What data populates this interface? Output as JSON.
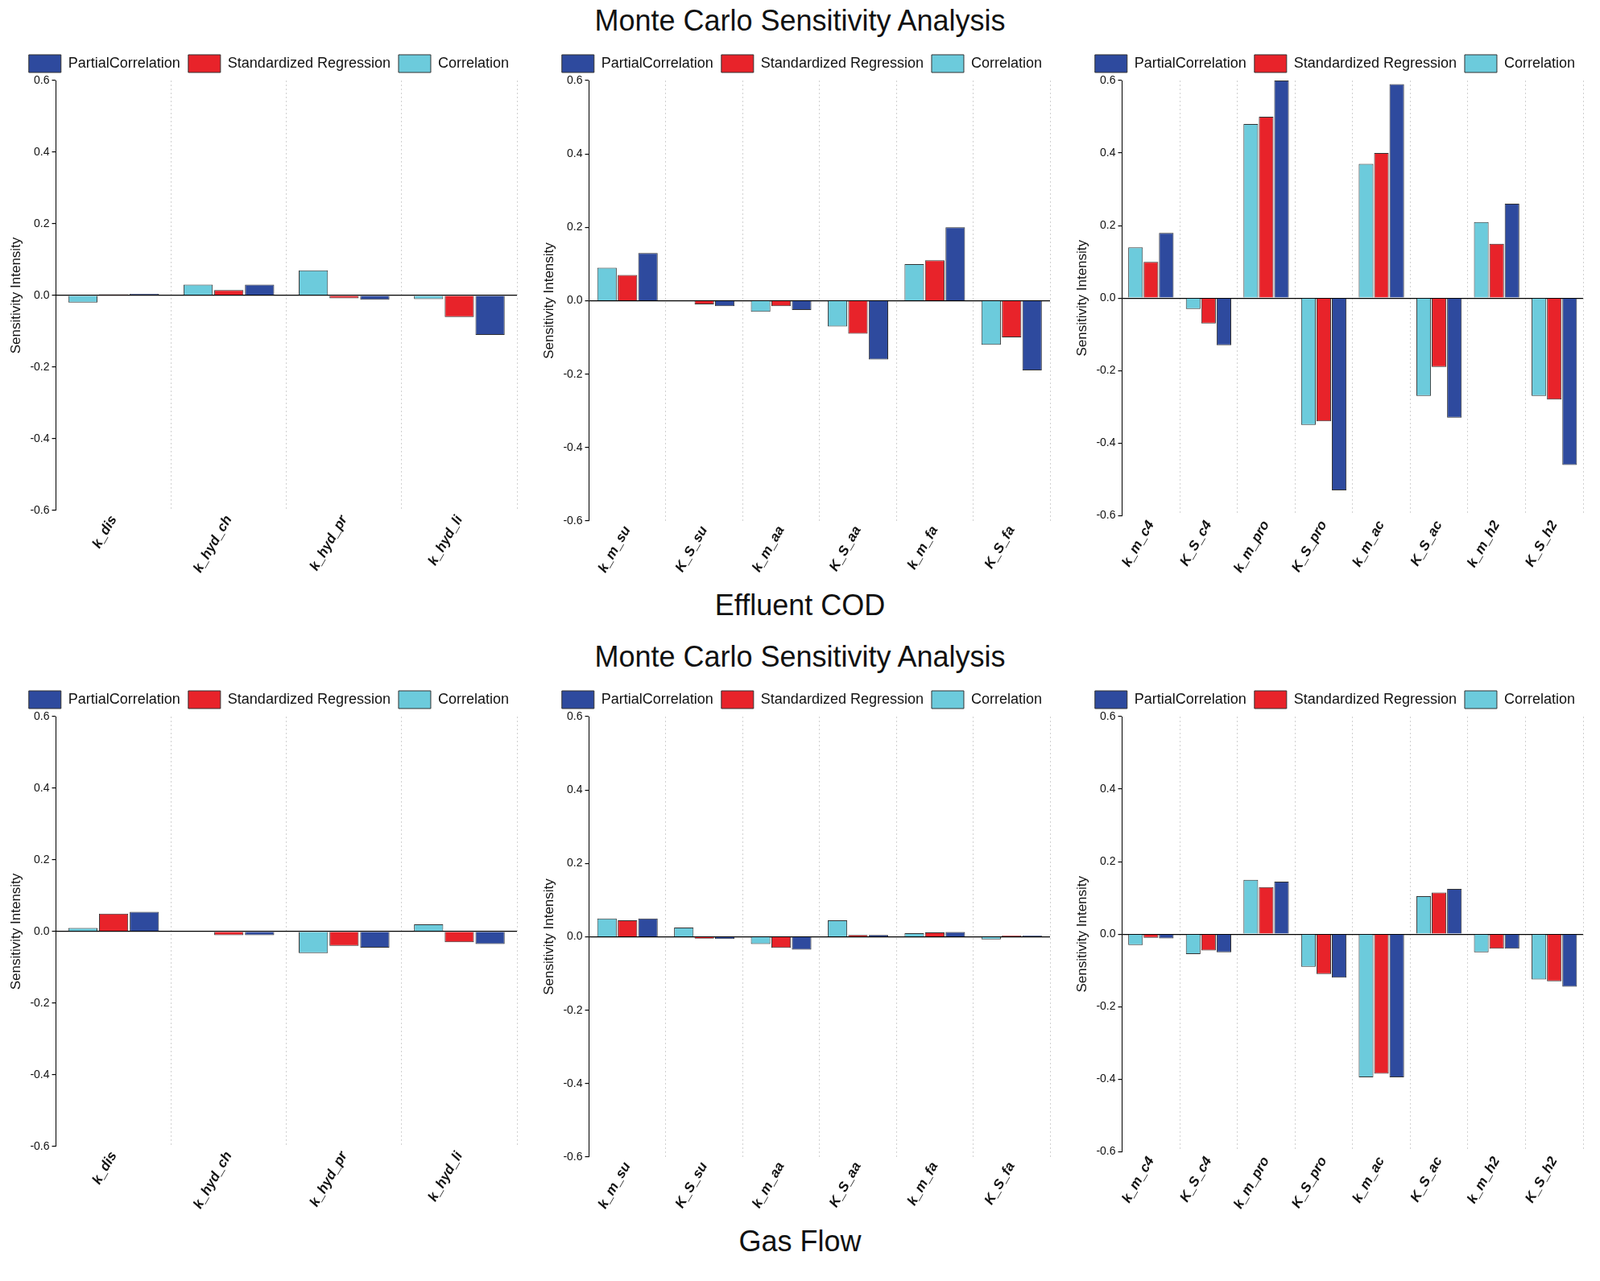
{
  "sections": [
    {
      "title": "Monte Carlo  Sensitivity Analysis",
      "caption": "Effluent COD"
    },
    {
      "title": "Monte Carlo  Sensitivity Analysis",
      "caption": "Gas Flow"
    }
  ],
  "chart_data": [
    {
      "type": "bar",
      "ylabel": "Sensitivity Intensity",
      "legend": "upper right",
      "grid": true,
      "categories": [
        "k_dis",
        "k_hyd_ch",
        "k_hyd_pr",
        "k_hyd_li"
      ],
      "series": [
        {
          "name": "Correlation",
          "color": "#6ccbdc",
          "values": [
            -0.02,
            0.03,
            0.07,
            -0.01
          ]
        },
        {
          "name": "Standardized Regression",
          "color": "#e8232a",
          "values": [
            0.003,
            0.015,
            -0.008,
            -0.06
          ]
        },
        {
          "name": "PartialCorrelation",
          "color": "#2e4a9e",
          "values": [
            0.005,
            0.03,
            -0.012,
            -0.11
          ]
        }
      ],
      "ylim": [
        -0.6,
        0.6
      ],
      "yticks": [
        -0.6,
        -0.4,
        -0.2,
        {
          "value": 0,
          "label": "0.0"
        },
        0.2,
        0.4,
        0.6
      ]
    },
    {
      "type": "bar",
      "ylabel": "Sensitivity Intensity",
      "legend": "upper right",
      "grid": true,
      "categories": [
        "k_m_su",
        "K_S_su",
        "k_m_aa",
        "K_S_aa",
        "k_m_fa",
        "K_S_fa"
      ],
      "series": [
        {
          "name": "Correlation",
          "color": "#6ccbdc",
          "values": [
            0.09,
            0.0,
            -0.03,
            -0.07,
            0.1,
            -0.12
          ]
        },
        {
          "name": "Standardized Regression",
          "color": "#e8232a",
          "values": [
            0.07,
            -0.01,
            -0.015,
            -0.09,
            0.11,
            -0.1
          ]
        },
        {
          "name": "PartialCorrelation",
          "color": "#2e4a9e",
          "values": [
            0.13,
            -0.015,
            -0.025,
            -0.16,
            0.2,
            -0.19
          ]
        }
      ],
      "ylim": [
        -0.6,
        0.6
      ],
      "yticks": [
        -0.6,
        -0.4,
        -0.2,
        {
          "value": 0,
          "label": "0.0"
        },
        0.2,
        0.4,
        0.6
      ]
    },
    {
      "type": "bar",
      "ylabel": "Sensitivity Intensity",
      "legend": "upper right",
      "grid": true,
      "categories": [
        "k_m_c4",
        "K_S_c4",
        "k_m_pro",
        "K_S_pro",
        "k_m_ac",
        "K_S_ac",
        "k_m_h2",
        "K_S_h2"
      ],
      "series": [
        {
          "name": "Correlation",
          "color": "#6ccbdc",
          "values": [
            0.14,
            -0.03,
            0.48,
            -0.35,
            0.37,
            -0.27,
            0.21,
            -0.27
          ]
        },
        {
          "name": "Standardized Regression",
          "color": "#e8232a",
          "values": [
            0.1,
            -0.07,
            0.5,
            -0.34,
            0.4,
            -0.19,
            0.15,
            -0.28
          ]
        },
        {
          "name": "PartialCorrelation",
          "color": "#2e4a9e",
          "values": [
            0.18,
            -0.13,
            0.6,
            -0.53,
            0.59,
            -0.33,
            0.26,
            -0.46
          ]
        }
      ],
      "ylim": [
        -0.6,
        0.6
      ],
      "yticks": [
        -0.6,
        -0.4,
        -0.2,
        {
          "value": 0,
          "label": "0.0"
        },
        0.2,
        0.4,
        0.6
      ]
    },
    {
      "type": "bar",
      "ylabel": "Sensitivity Intensity",
      "legend": "upper right",
      "grid": true,
      "categories": [
        "k_dis",
        "k_hyd_ch",
        "k_hyd_pr",
        "k_hyd_li"
      ],
      "series": [
        {
          "name": "Correlation",
          "color": "#6ccbdc",
          "values": [
            0.01,
            0.0,
            -0.06,
            0.02
          ]
        },
        {
          "name": "Standardized Regression",
          "color": "#e8232a",
          "values": [
            0.05,
            -0.01,
            -0.04,
            -0.03
          ]
        },
        {
          "name": "PartialCorrelation",
          "color": "#2e4a9e",
          "values": [
            0.055,
            -0.01,
            -0.045,
            -0.035
          ]
        }
      ],
      "ylim": [
        -0.6,
        0.6
      ],
      "yticks": [
        -0.6,
        -0.4,
        -0.2,
        {
          "value": 0,
          "label": "0.0"
        },
        0.2,
        0.4,
        0.6
      ]
    },
    {
      "type": "bar",
      "ylabel": "Sensitivity Intensity",
      "legend": "upper right",
      "grid": true,
      "categories": [
        "k_m_su",
        "K_S_su",
        "k_m_aa",
        "K_S_aa",
        "k_m_fa",
        "K_S_fa"
      ],
      "series": [
        {
          "name": "Correlation",
          "color": "#6ccbdc",
          "values": [
            0.05,
            0.025,
            -0.02,
            0.045,
            0.01,
            -0.007
          ]
        },
        {
          "name": "Standardized Regression",
          "color": "#e8232a",
          "values": [
            0.045,
            -0.005,
            -0.03,
            0.005,
            0.012,
            0.003
          ]
        },
        {
          "name": "PartialCorrelation",
          "color": "#2e4a9e",
          "values": [
            0.05,
            -0.006,
            -0.035,
            0.005,
            0.013,
            0.003
          ]
        }
      ],
      "ylim": [
        -0.6,
        0.6
      ],
      "yticks": [
        -0.6,
        -0.4,
        -0.2,
        {
          "value": 0,
          "label": "0.0"
        },
        0.2,
        0.4,
        0.6
      ]
    },
    {
      "type": "bar",
      "ylabel": "Sensitivity Intensity",
      "legend": "upper right",
      "grid": true,
      "categories": [
        "k_m_c4",
        "K_S_c4",
        "k_m_pro",
        "K_S_pro",
        "k_m_ac",
        "K_S_ac",
        "k_m_h2",
        "K_S_h2"
      ],
      "series": [
        {
          "name": "Correlation",
          "color": "#6ccbdc",
          "values": [
            -0.03,
            -0.055,
            0.15,
            -0.09,
            -0.395,
            0.105,
            -0.05,
            -0.125
          ]
        },
        {
          "name": "Standardized Regression",
          "color": "#e8232a",
          "values": [
            -0.01,
            -0.045,
            0.13,
            -0.11,
            -0.385,
            0.115,
            -0.04,
            -0.13
          ]
        },
        {
          "name": "PartialCorrelation",
          "color": "#2e4a9e",
          "values": [
            -0.012,
            -0.05,
            0.145,
            -0.12,
            -0.395,
            0.125,
            -0.04,
            -0.145
          ]
        }
      ],
      "ylim": [
        -0.6,
        0.6
      ],
      "yticks": [
        -0.6,
        -0.4,
        -0.2,
        {
          "value": 0,
          "label": "0.0"
        },
        0.2,
        0.4,
        0.6
      ]
    }
  ]
}
